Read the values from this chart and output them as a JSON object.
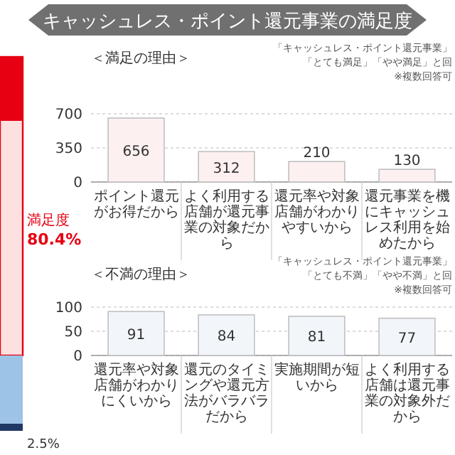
{
  "chart_data": [
    {
      "type": "other",
      "title": "キャッシュレス・ポイント還元事業の満足度",
      "annotations": [
        "満足度",
        "80.4%",
        "2.5%"
      ]
    },
    {
      "type": "bar",
      "title": "＜満足の理由＞",
      "categories": [
        "ポイント還元がお得だから",
        "よく利用する店舗が還元事業の対象だから",
        "還元率や対象店舗がわかりやすいから",
        "還元事業を機にキャッシュレス利用を始めたから"
      ],
      "values": [
        656,
        312,
        210,
        130
      ],
      "color": "#fdf0f0",
      "ylim": [
        0,
        700
      ],
      "yticks": [
        0,
        350,
        700
      ],
      "grid": "y",
      "data_labels": true,
      "annotations": [
        "「キャッシュレス・ポイント還元事業」",
        "「とても満足」「やや満足」と回",
        "※複数回答可"
      ]
    },
    {
      "type": "bar",
      "title": "＜不満の理由＞",
      "categories": [
        "還元率や対象店舗がわかりにくいから",
        "還元のタイミングや還元方法がバラバラだから",
        "実施期間が短いから",
        "よく利用する店舗は還元事業の対象外だから"
      ],
      "values": [
        91,
        84,
        81,
        77
      ],
      "color": "#f2f6fb",
      "ylim": [
        0,
        100
      ],
      "yticks": [
        0,
        50,
        100
      ],
      "grid": "y",
      "data_labels": true,
      "annotations": [
        "「キャッシュレス・ポイント還元事業」",
        "「とても不満」「やや不満」と回",
        "※複数回答可"
      ]
    }
  ]
}
